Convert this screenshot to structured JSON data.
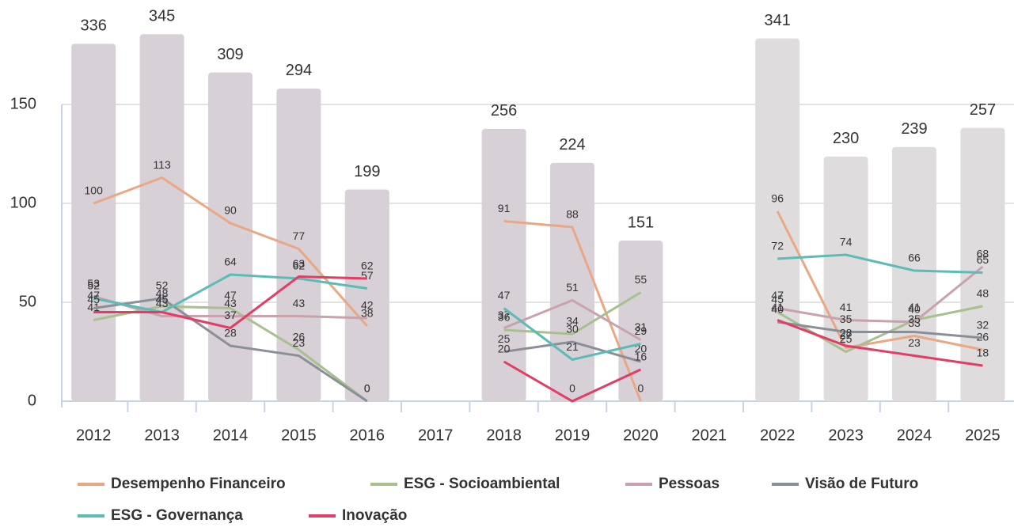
{
  "chart_data": {
    "type": "bar-line",
    "categories": [
      "2012",
      "2013",
      "2014",
      "2015",
      "2016",
      "2017",
      "2018",
      "2019",
      "2020",
      "2021",
      "2022",
      "2023",
      "2024",
      "2025"
    ],
    "ylim": [
      0,
      200
    ],
    "yticks": [
      0,
      50,
      100,
      150
    ],
    "y2lim": [
      0,
      372
    ],
    "grid": true,
    "legend": "bottom",
    "bars": {
      "axis": "y2",
      "values": [
        336,
        345,
        309,
        294,
        199,
        null,
        256,
        224,
        151,
        null,
        341,
        230,
        239,
        257
      ],
      "colors": [
        "#d7d0d6",
        "#d7d0d6",
        "#d7d0d6",
        "#d7d0d6",
        "#d7d0d6",
        null,
        "#d7d0d6",
        "#d7d0d6",
        "#d7d0d6",
        null,
        "#dedcdd",
        "#dedcdd",
        "#dedcdd",
        "#dedcdd"
      ]
    },
    "series": [
      {
        "name": "Desempenho Financeiro",
        "color": "#eba784",
        "values": [
          100,
          113,
          90,
          77,
          38,
          null,
          91,
          88,
          0,
          null,
          96,
          27,
          33,
          26
        ]
      },
      {
        "name": "ESG - Socioambiental",
        "color": "#a7c08e",
        "values": [
          41,
          48,
          47,
          26,
          0,
          null,
          36,
          34,
          55,
          null,
          45,
          25,
          41,
          48
        ]
      },
      {
        "name": "Pessoas",
        "color": "#c9a2ab",
        "values": [
          53,
          43,
          43,
          43,
          42,
          null,
          37,
          51,
          31,
          null,
          47,
          41,
          40,
          68
        ]
      },
      {
        "name": "Visão de Futuro",
        "color": "#8b9098",
        "values": [
          47,
          52,
          28,
          23,
          0,
          null,
          25,
          30,
          20,
          null,
          40,
          35,
          35,
          32
        ]
      },
      {
        "name": "ESG - Governança",
        "color": "#5bbcb6",
        "values": [
          52,
          45,
          64,
          62,
          57,
          null,
          47,
          21,
          29,
          null,
          72,
          74,
          66,
          65
        ]
      },
      {
        "name": "Inovação",
        "color": "#e23d66",
        "values": [
          45,
          45,
          37,
          63,
          62,
          null,
          20,
          0,
          16,
          null,
          41,
          28,
          23,
          18
        ]
      }
    ]
  }
}
